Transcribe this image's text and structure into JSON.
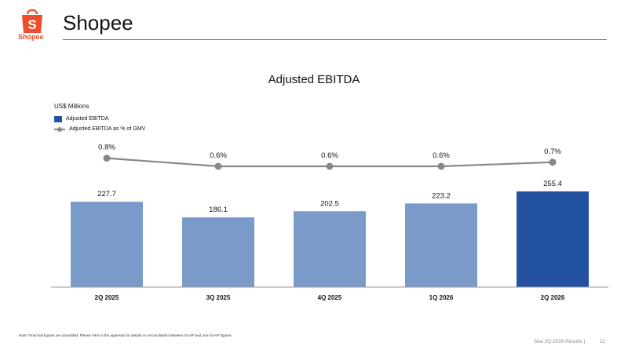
{
  "brand": {
    "name": "Shopee",
    "logo_text": "Shopee",
    "logo_glyph": "S",
    "accent": "#ee4d2d"
  },
  "chart_data": {
    "type": "bar",
    "title": "Adjusted EBITDA",
    "unit_label": "US$ Millions",
    "categories": [
      "2Q 2025",
      "3Q 2025",
      "4Q 2025",
      "1Q 2026",
      "2Q 2026"
    ],
    "series": [
      {
        "name": "Adjusted EBITDA",
        "type": "bar",
        "values": [
          227.7,
          186.1,
          202.5,
          223.2,
          255.4
        ],
        "labels": [
          "227.7",
          "186.1",
          "202.5",
          "223.2",
          "255.4"
        ],
        "color": "#7a9bc9",
        "highlight_color": "#2353a0",
        "highlight_index": 4
      },
      {
        "name": "Adjusted EBITDA as % of GMV",
        "type": "line",
        "values": [
          0.8,
          0.6,
          0.6,
          0.6,
          0.7
        ],
        "labels": [
          "0.8%",
          "0.6%",
          "0.6%",
          "0.6%",
          "0.7%"
        ],
        "color": "#888888"
      }
    ],
    "legend_position": "top-left",
    "grid": false
  },
  "footnote": "Note: Financial figures are unaudited. Please refer to the appendix for details on reconciliation between GAAP and non-GAAP figures.",
  "footer": {
    "label": "Sea 2Q 2026 Results |",
    "page": "11"
  }
}
